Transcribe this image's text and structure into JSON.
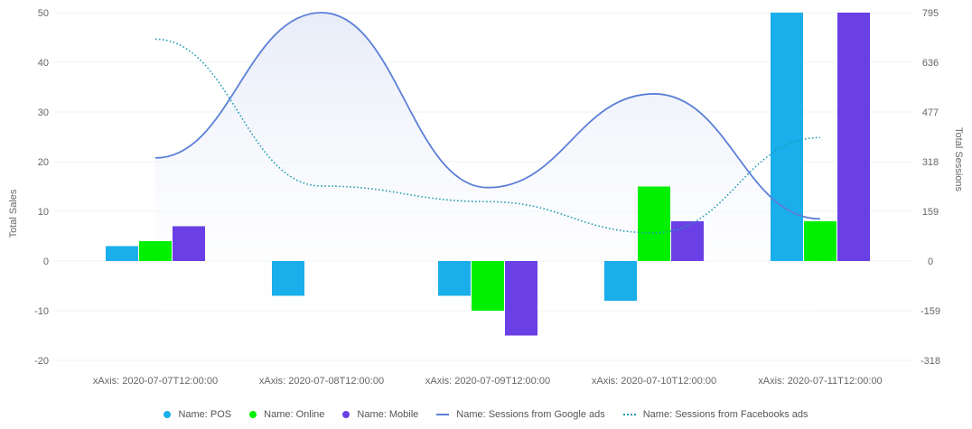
{
  "chart_data": {
    "type": "bar",
    "categories": [
      "xAxis: 2020-07-07T12:00:00",
      "xAxis: 2020-07-08T12:00:00",
      "xAxis: 2020-07-09T12:00:00",
      "xAxis: 2020-07-10T12:00:00",
      "xAxis: 2020-07-11T12:00:00"
    ],
    "series": [
      {
        "name": "Name: POS",
        "type": "bar",
        "axis": "left",
        "color": "#1aaeea",
        "values": [
          3,
          -7,
          -7,
          -8,
          50
        ]
      },
      {
        "name": "Name: Online",
        "type": "bar",
        "axis": "left",
        "color": "#00f000",
        "values": [
          4,
          0,
          -10,
          15,
          8
        ]
      },
      {
        "name": "Name: Mobile",
        "type": "bar",
        "axis": "left",
        "color": "#6a40e6",
        "values": [
          7,
          0,
          -15,
          8,
          50
        ]
      },
      {
        "name": "Name: Sessions from Google ads",
        "type": "line",
        "style": "solid",
        "area": true,
        "axis": "right",
        "color": "#5b7fd6",
        "values": [
          330,
          795,
          235,
          535,
          135
        ]
      },
      {
        "name": "Name: Sessions from Facebooks ads",
        "type": "line",
        "style": "dotted",
        "axis": "right",
        "color": "#1b9bb0",
        "values": [
          710,
          240,
          190,
          90,
          395
        ]
      }
    ],
    "ylabel": "Total Sales",
    "y2label": "Total Sessions",
    "ylim": [
      -20,
      50
    ],
    "yticks": [
      "50",
      "40",
      "30",
      "20",
      "10",
      "0",
      "-10",
      "-20"
    ],
    "y2lim": [
      -318,
      795
    ],
    "y2ticks": [
      "795",
      "636",
      "477",
      "318",
      "159",
      "0",
      "-159",
      "-318"
    ],
    "grid": true,
    "legend_position": "bottom"
  }
}
